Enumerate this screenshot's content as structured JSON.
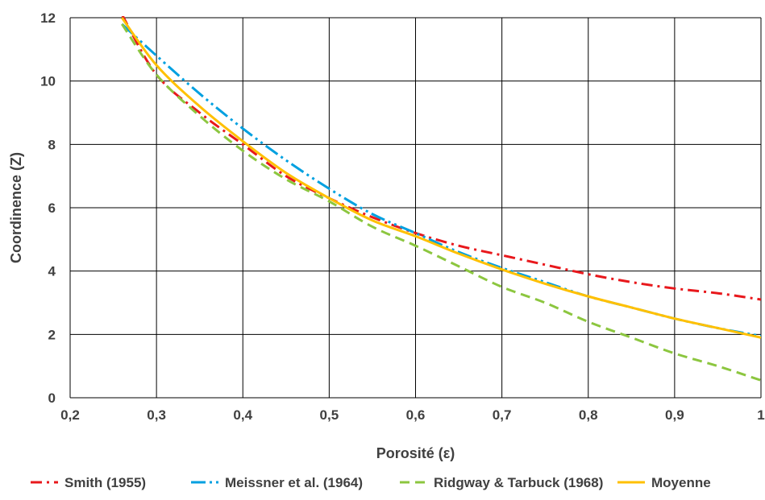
{
  "chart_data": {
    "type": "line",
    "title": "",
    "xlabel": "Porosité (ε)",
    "ylabel": "Coordinence (Z)",
    "xlim": [
      0.2,
      1.0
    ],
    "ylim": [
      0,
      12
    ],
    "xticks": [
      0.2,
      0.3,
      0.4,
      0.5,
      0.6,
      0.7,
      0.8,
      0.9,
      1.0
    ],
    "xtick_labels": [
      "0,2",
      "0,3",
      "0,4",
      "0,5",
      "0,6",
      "0,7",
      "0,8",
      "0,9",
      "1"
    ],
    "yticks": [
      0,
      2,
      4,
      6,
      8,
      10,
      12
    ],
    "ytick_labels": [
      "0",
      "2",
      "4",
      "6",
      "8",
      "10",
      "12"
    ],
    "grid": true,
    "legend_position": "bottom",
    "series": [
      {
        "name": "Smith (1955)",
        "color": "#E8181C",
        "dash": "dash-dot",
        "x": [
          0.26,
          0.3,
          0.35,
          0.4,
          0.45,
          0.5,
          0.55,
          0.6,
          0.65,
          0.7,
          0.75,
          0.8,
          0.85,
          0.9,
          0.95,
          1.0
        ],
        "y": [
          12.1,
          10.2,
          9.0,
          8.0,
          7.0,
          6.3,
          5.7,
          5.2,
          4.8,
          4.5,
          4.2,
          3.9,
          3.65,
          3.45,
          3.3,
          3.1
        ]
      },
      {
        "name": "Meissner et al. (1964)",
        "color": "#00A0E0",
        "dash": "dash-dot-dot",
        "x": [
          0.26,
          0.3,
          0.35,
          0.4,
          0.45,
          0.5,
          0.55,
          0.6,
          0.65,
          0.7,
          0.75,
          0.8,
          0.85,
          0.9,
          0.95,
          1.0
        ],
        "y": [
          11.8,
          10.8,
          9.6,
          8.5,
          7.5,
          6.6,
          5.8,
          5.2,
          4.6,
          4.1,
          3.65,
          3.2,
          2.85,
          2.5,
          2.2,
          1.95
        ]
      },
      {
        "name": "Ridgway & Tarbuck (1968)",
        "color": "#8CC63F",
        "dash": "dash",
        "x": [
          0.26,
          0.3,
          0.35,
          0.4,
          0.45,
          0.5,
          0.55,
          0.6,
          0.65,
          0.7,
          0.75,
          0.8,
          0.85,
          0.9,
          0.95,
          1.0
        ],
        "y": [
          11.8,
          10.2,
          8.9,
          7.8,
          6.9,
          6.2,
          5.4,
          4.8,
          4.15,
          3.5,
          3.0,
          2.4,
          1.9,
          1.4,
          1.0,
          0.55
        ]
      },
      {
        "name": "Moyenne",
        "color": "#FFC000",
        "dash": "solid",
        "x": [
          0.26,
          0.3,
          0.35,
          0.4,
          0.45,
          0.5,
          0.55,
          0.6,
          0.65,
          0.7,
          0.75,
          0.8,
          0.85,
          0.9,
          0.95,
          1.0
        ],
        "y": [
          12.0,
          10.5,
          9.2,
          8.1,
          7.1,
          6.3,
          5.6,
          5.1,
          4.55,
          4.05,
          3.6,
          3.2,
          2.85,
          2.5,
          2.2,
          1.9
        ]
      }
    ]
  }
}
